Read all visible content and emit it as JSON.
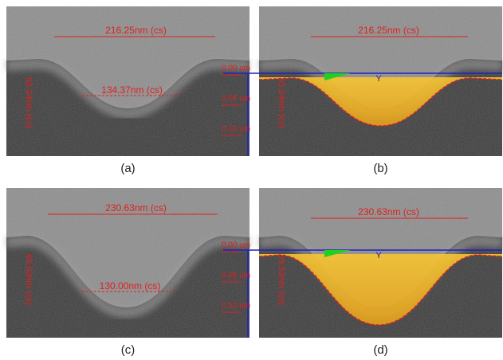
{
  "panels": [
    {
      "caption": "(a)",
      "top_width": "216.25nm (cs)",
      "bottom_width": "134.37nm (cs)",
      "depth": "63.24nm (cs)"
    },
    {
      "caption": "(b)",
      "top_width": "216.25nm (cs)",
      "depth": "63.24nm (cs)",
      "scale": [
        "0.00 um",
        "0.05 um",
        "0.10 um"
      ],
      "axis": "Y"
    },
    {
      "caption": "(c)",
      "top_width": "230.63nm (cs)",
      "bottom_width": "130.00nm (cs)",
      "depth": "66.52nm (cs)"
    },
    {
      "caption": "(d)",
      "top_width": "230.63nm (cs)",
      "depth": "66.52nm (cs)",
      "scale": [
        "0.00 um",
        "0.05 um",
        "0.10 um"
      ],
      "axis": "Y"
    }
  ]
}
